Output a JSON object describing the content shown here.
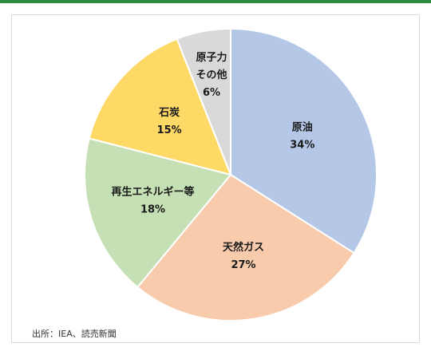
{
  "chart_data": {
    "type": "pie",
    "title": "",
    "start_angle_deg": 0,
    "direction": "clockwise",
    "slices": [
      {
        "label": "原油",
        "value": 34,
        "value_label": "34%",
        "color": "#b4c7e7"
      },
      {
        "label": "天然ガス",
        "value": 27,
        "value_label": "27%",
        "color": "#f8cbad"
      },
      {
        "label": "再生エネルギー等",
        "value": 18,
        "value_label": "18%",
        "color": "#c5e0b4"
      },
      {
        "label": "石炭",
        "value": 15,
        "value_label": "15%",
        "color": "#ffd966"
      },
      {
        "label": "原子力\nその他",
        "value": 6,
        "value_label": "6%",
        "color": "#d9d9d9"
      }
    ]
  },
  "source": "出所：IEA、読売新聞"
}
